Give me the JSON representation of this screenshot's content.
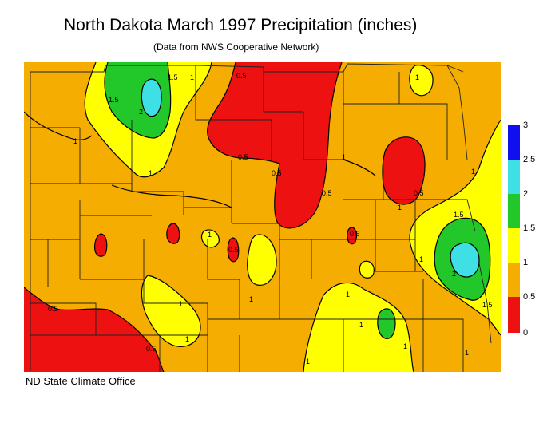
{
  "title": "North Dakota March 1997 Precipitation (inches)",
  "subtitle": "(Data from NWS Cooperative Network)",
  "credit": "ND State Climate Office",
  "colors": {
    "c0_05": "#ee1111",
    "c05_1": "#f4ad00",
    "c1_15": "#ffff00",
    "c15_2": "#22c82a",
    "c2_25": "#3fdfe6",
    "c25_3": "#1010ee"
  },
  "legend": {
    "labels": [
      "3",
      "2.5",
      "2",
      "1.5",
      "1",
      "0.5",
      "0"
    ]
  },
  "contour_labels": [
    "1",
    "1",
    "1",
    "1",
    "1",
    "1",
    "1",
    "1",
    "1",
    "1",
    "1",
    "1",
    "1",
    "1",
    "1",
    "1",
    "1",
    "1.5",
    "1.5",
    "1.5",
    "1.5",
    "2",
    "2",
    "0.5",
    "0.5",
    "0.5",
    "0.5",
    "0.5",
    "0.5",
    "0.5",
    "0.5",
    "0.5"
  ]
}
